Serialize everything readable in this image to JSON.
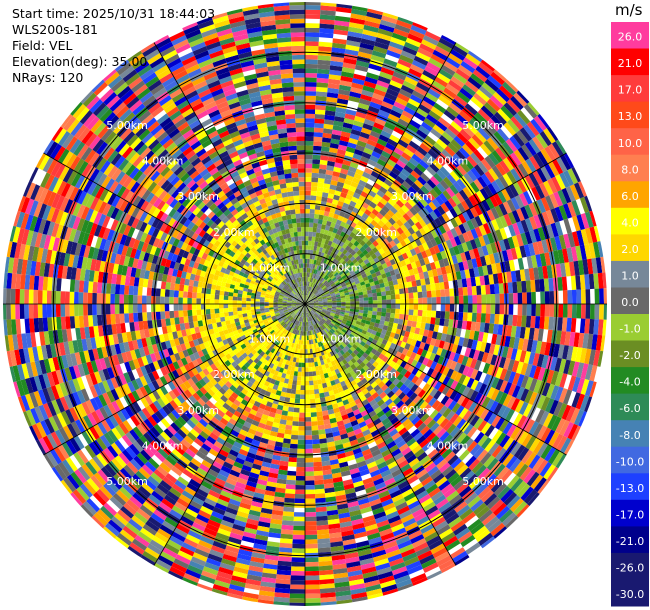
{
  "info": {
    "start_time": "Start time: 2025/10/31 18:44:03",
    "station": "WLS200s-181",
    "field": "Field: VEL",
    "elevation": "Elevation(deg): 35.00",
    "nrays": "NRays: 120"
  },
  "chart_data": {
    "type": "heatmap",
    "projection": "polar-ppi",
    "field": "VEL",
    "units": "m/s",
    "elevation_deg": 35.0,
    "n_rays": 120,
    "max_range_km": 6.0,
    "range_rings_km": [
      1,
      2,
      3,
      4,
      5
    ],
    "range_ring_labels": [
      "1.00km",
      "2.00km",
      "3.00km",
      "4.00km",
      "5.00km"
    ],
    "colorbar": {
      "title": "m/s",
      "tick_labels": [
        "26.0",
        "21.0",
        "17.0",
        "13.0",
        "10.0",
        "8.0",
        "6.0",
        "4.0",
        "2.0",
        "1.0",
        "0.0",
        "-1.0",
        "-2.0",
        "-4.0",
        "-6.0",
        "-8.0",
        "-10.0",
        "-13.0",
        "-17.0",
        "-21.0",
        "-26.0",
        "-30.0"
      ],
      "colors": [
        "#ff3c9e",
        "#ff0000",
        "#ff3b3b",
        "#ff4a1a",
        "#ff6347",
        "#ff7f50",
        "#ffa500",
        "#ffff00",
        "#ffd700",
        "#778899",
        "#696969",
        "#9acd32",
        "#6b8e23",
        "#228b22",
        "#2e8b57",
        "#4682b4",
        "#4169e1",
        "#1e40ff",
        "#0000cd",
        "#00008b",
        "#191970",
        "#191970"
      ]
    },
    "field_summary": [
      {
        "range_km": [
          0,
          1.5
        ],
        "dominant_velocity": "-2.0 to 1.0",
        "note": "near-zero, grey/olive"
      },
      {
        "range_km": [
          1.0,
          2.5
        ],
        "dominant_velocity": "2.0 to 4.0 (southwest), -2.0 to 0.0 (northeast)"
      },
      {
        "range_km": [
          2.5,
          6.0
        ],
        "dominant_velocity": "noise, full range -30.0 to 26.0"
      }
    ]
  }
}
